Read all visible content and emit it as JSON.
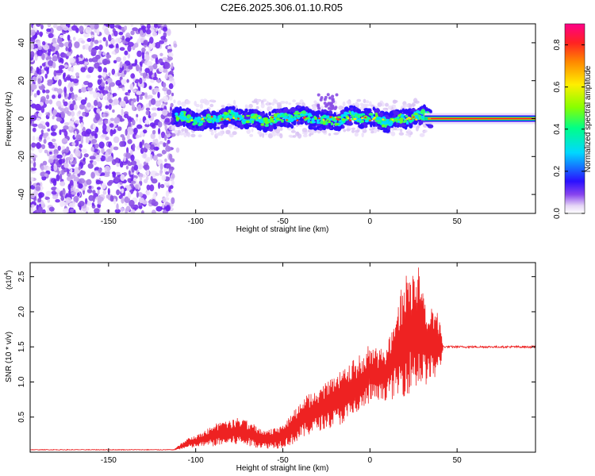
{
  "title": "C2E6.2025.306.01.10.R05",
  "chart_data": [
    {
      "type": "heatmap",
      "title": "C2E6.2025.306.01.10.R05",
      "xlabel": "Height of straight line (km)",
      "ylabel": "Frequency (Hz)",
      "xlim": [
        -195,
        95
      ],
      "ylim": [
        -50,
        50
      ],
      "xticks": [
        -150,
        -100,
        -50,
        0,
        50
      ],
      "xtick_labels": [
        "-150",
        "-100",
        "-50",
        "0",
        "50"
      ],
      "yticks": [
        40,
        20,
        0,
        -20,
        -40
      ],
      "ytick_labels": [
        "40",
        "20",
        "0",
        "-20",
        "-40"
      ],
      "noise_region_x": [
        -195,
        -113
      ],
      "signal_region_x": [
        -113,
        35
      ],
      "steady_region_x": [
        35,
        95
      ],
      "signal_center_hz": 0,
      "signal_halfwidth_hz": 4,
      "colorbar": {
        "label": "Normalized spectral amplitude",
        "range": [
          0,
          0.9
        ],
        "ticks": [
          0.0,
          0.2,
          0.4,
          0.6,
          0.8
        ],
        "tick_labels": [
          "0.0",
          "0.2",
          "0.4",
          "0.6",
          "0.8"
        ]
      }
    },
    {
      "type": "line",
      "xlabel": "Height of straight line (km)",
      "ylabel": "SNR (10 * v/v)",
      "multiplier": "(x10",
      "multiplier_exp": "4",
      "multiplier_close": ")",
      "xlim": [
        -195,
        95
      ],
      "ylim": [
        0,
        2.7
      ],
      "xticks": [
        -150,
        -100,
        -50,
        0,
        50
      ],
      "xtick_labels": [
        "-150",
        "-100",
        "-50",
        "0",
        "50"
      ],
      "yticks": [
        0.5,
        1.0,
        1.5,
        2.0,
        2.5
      ],
      "ytick_labels": [
        "0.5",
        "1.0",
        "1.5",
        "2.0",
        "2.5"
      ],
      "line_color": "#ee2222",
      "envelope": {
        "x": [
          -195,
          -112,
          -105,
          -95,
          -90,
          -82,
          -75,
          -70,
          -60,
          -52,
          -45,
          -38,
          -30,
          -22,
          -15,
          -10,
          -5,
          0,
          5,
          10,
          15,
          20,
          25,
          28,
          32,
          36,
          40,
          42,
          45,
          60,
          80,
          95
        ],
        "low": [
          0.03,
          0.03,
          0.05,
          0.08,
          0.08,
          0.1,
          0.1,
          0.08,
          0.05,
          0.05,
          0.1,
          0.2,
          0.3,
          0.35,
          0.4,
          0.45,
          0.55,
          0.7,
          0.7,
          0.75,
          0.75,
          0.8,
          0.85,
          0.9,
          0.95,
          1.0,
          1.1,
          1.48,
          1.48,
          1.48,
          1.48,
          1.48
        ],
        "high": [
          0.05,
          0.05,
          0.2,
          0.3,
          0.4,
          0.45,
          0.5,
          0.45,
          0.3,
          0.4,
          0.55,
          0.8,
          0.9,
          1.05,
          1.2,
          1.3,
          1.4,
          1.55,
          1.45,
          1.55,
          2.1,
          2.5,
          2.72,
          2.65,
          2.2,
          2.1,
          1.95,
          1.52,
          1.52,
          1.52,
          1.52,
          1.52
        ]
      },
      "steady_value": 1.5
    }
  ]
}
